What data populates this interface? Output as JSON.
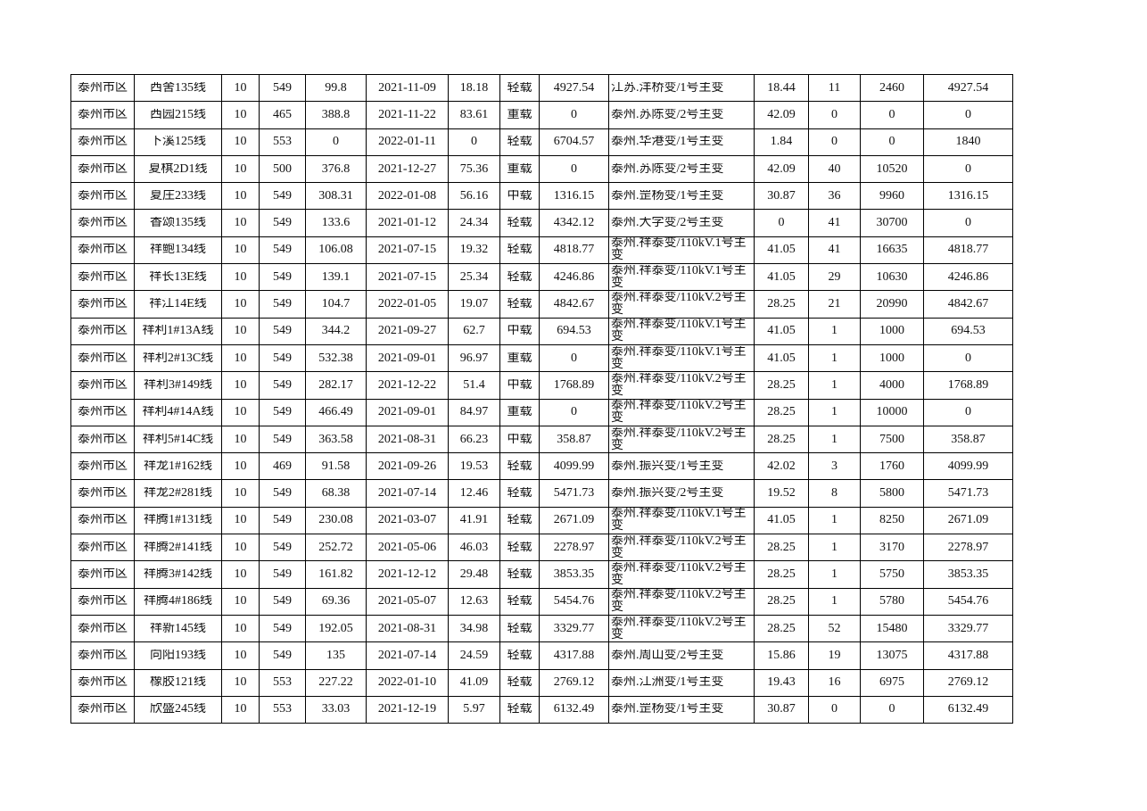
{
  "table": {
    "rows": [
      [
        "泰州市区",
        "西舍135线",
        "10",
        "549",
        "99.8",
        "2021-11-09",
        "18.18",
        "轻载",
        "4927.54",
        "江苏.洋桥变/1号主变",
        "18.44",
        "11",
        "2460",
        "4927.54"
      ],
      [
        "泰州市区",
        "西园215线",
        "10",
        "465",
        "388.8",
        "2021-11-22",
        "83.61",
        "重载",
        "0",
        "泰州.苏陈变/2号主变",
        "42.09",
        "0",
        "0",
        "0"
      ],
      [
        "泰州市区",
        "下溪125线",
        "10",
        "553",
        "0",
        "2022-01-11",
        "0",
        "轻载",
        "6704.57",
        "泰州.华港变/1号主变",
        "1.84",
        "0",
        "0",
        "1840"
      ],
      [
        "泰州市区",
        "夏棋2D1线",
        "10",
        "500",
        "376.8",
        "2021-12-27",
        "75.36",
        "重载",
        "0",
        "泰州.苏陈变/2号主变",
        "42.09",
        "40",
        "10520",
        "0"
      ],
      [
        "泰州市区",
        "夏庄233线",
        "10",
        "549",
        "308.31",
        "2022-01-08",
        "56.16",
        "中载",
        "1316.15",
        "泰州.罡杨变/1号主变",
        "30.87",
        "36",
        "9960",
        "1316.15"
      ],
      [
        "泰州市区",
        "香颂135线",
        "10",
        "549",
        "133.6",
        "2021-01-12",
        "24.34",
        "轻载",
        "4342.12",
        "泰州.大学变/2号主变",
        "0",
        "41",
        "30700",
        "0"
      ],
      [
        "泰州市区",
        "祥鲍134线",
        "10",
        "549",
        "106.08",
        "2021-07-15",
        "19.32",
        "轻载",
        "4818.77",
        "泰州.祥泰变/110kV.1号主变",
        "41.05",
        "41",
        "16635",
        "4818.77"
      ],
      [
        "泰州市区",
        "祥长13E线",
        "10",
        "549",
        "139.1",
        "2021-07-15",
        "25.34",
        "轻载",
        "4246.86",
        "泰州.祥泰变/110kV.1号主变",
        "41.05",
        "29",
        "10630",
        "4246.86"
      ],
      [
        "泰州市区",
        "祥江14E线",
        "10",
        "549",
        "104.7",
        "2022-01-05",
        "19.07",
        "轻载",
        "4842.67",
        "泰州.祥泰变/110kV.2号主变",
        "28.25",
        "21",
        "20990",
        "4842.67"
      ],
      [
        "泰州市区",
        "祥利1#13A线",
        "10",
        "549",
        "344.2",
        "2021-09-27",
        "62.7",
        "中载",
        "694.53",
        "泰州.祥泰变/110kV.1号主变",
        "41.05",
        "1",
        "1000",
        "694.53"
      ],
      [
        "泰州市区",
        "祥利2#13C线",
        "10",
        "549",
        "532.38",
        "2021-09-01",
        "96.97",
        "重载",
        "0",
        "泰州.祥泰变/110kV.1号主变",
        "41.05",
        "1",
        "1000",
        "0"
      ],
      [
        "泰州市区",
        "祥利3#149线",
        "10",
        "549",
        "282.17",
        "2021-12-22",
        "51.4",
        "中载",
        "1768.89",
        "泰州.祥泰变/110kV.2号主变",
        "28.25",
        "1",
        "4000",
        "1768.89"
      ],
      [
        "泰州市区",
        "祥利4#14A线",
        "10",
        "549",
        "466.49",
        "2021-09-01",
        "84.97",
        "重载",
        "0",
        "泰州.祥泰变/110kV.2号主变",
        "28.25",
        "1",
        "10000",
        "0"
      ],
      [
        "泰州市区",
        "祥利5#14C线",
        "10",
        "549",
        "363.58",
        "2021-08-31",
        "66.23",
        "中载",
        "358.87",
        "泰州.祥泰变/110kV.2号主变",
        "28.25",
        "1",
        "7500",
        "358.87"
      ],
      [
        "泰州市区",
        "祥龙1#162线",
        "10",
        "469",
        "91.58",
        "2021-09-26",
        "19.53",
        "轻载",
        "4099.99",
        "泰州.振兴变/1号主变",
        "42.02",
        "3",
        "1760",
        "4099.99"
      ],
      [
        "泰州市区",
        "祥龙2#281线",
        "10",
        "549",
        "68.38",
        "2021-07-14",
        "12.46",
        "轻载",
        "5471.73",
        "泰州.振兴变/2号主变",
        "19.52",
        "8",
        "5800",
        "5471.73"
      ],
      [
        "泰州市区",
        "祥腾1#131线",
        "10",
        "549",
        "230.08",
        "2021-03-07",
        "41.91",
        "轻载",
        "2671.09",
        "泰州.祥泰变/110kV.1号主变",
        "41.05",
        "1",
        "8250",
        "2671.09"
      ],
      [
        "泰州市区",
        "祥腾2#141线",
        "10",
        "549",
        "252.72",
        "2021-05-06",
        "46.03",
        "轻载",
        "2278.97",
        "泰州.祥泰变/110kV.2号主变",
        "28.25",
        "1",
        "3170",
        "2278.97"
      ],
      [
        "泰州市区",
        "祥腾3#142线",
        "10",
        "549",
        "161.82",
        "2021-12-12",
        "29.48",
        "轻载",
        "3853.35",
        "泰州.祥泰变/110kV.2号主变",
        "28.25",
        "1",
        "5750",
        "3853.35"
      ],
      [
        "泰州市区",
        "祥腾4#186线",
        "10",
        "549",
        "69.36",
        "2021-05-07",
        "12.63",
        "轻载",
        "5454.76",
        "泰州.祥泰变/110kV.2号主变",
        "28.25",
        "1",
        "5780",
        "5454.76"
      ],
      [
        "泰州市区",
        "祥新145线",
        "10",
        "549",
        "192.05",
        "2021-08-31",
        "34.98",
        "轻载",
        "3329.77",
        "泰州.祥泰变/110kV.2号主变",
        "28.25",
        "52",
        "15480",
        "3329.77"
      ],
      [
        "泰州市区",
        "向阳193线",
        "10",
        "549",
        "135",
        "2021-07-14",
        "24.59",
        "轻载",
        "4317.88",
        "泰州.周山变/2号主变",
        "15.86",
        "19",
        "13075",
        "4317.88"
      ],
      [
        "泰州市区",
        "橡胶121线",
        "10",
        "553",
        "227.22",
        "2022-01-10",
        "41.09",
        "轻载",
        "2769.12",
        "泰州.江洲变/1号主变",
        "19.43",
        "16",
        "6975",
        "2769.12"
      ],
      [
        "泰州市区",
        "欣盛245线",
        "10",
        "553",
        "33.03",
        "2021-12-19",
        "5.97",
        "轻载",
        "6132.49",
        "泰州.罡杨变/1号主变",
        "30.87",
        "0",
        "0",
        "6132.49"
      ]
    ]
  }
}
